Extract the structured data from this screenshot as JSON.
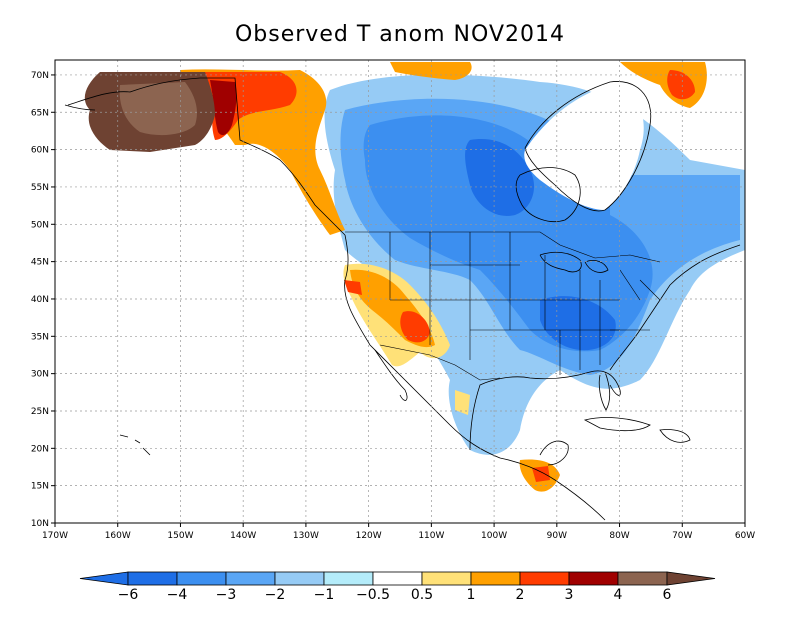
{
  "title": "Observed T anom NOV2014",
  "map": {
    "lon_range": [
      -170,
      -60
    ],
    "lat_range": [
      10,
      72
    ],
    "lat_ticks": [
      "70N",
      "65N",
      "60N",
      "55N",
      "50N",
      "45N",
      "40N",
      "35N",
      "30N",
      "25N",
      "20N",
      "15N",
      "10N"
    ],
    "lat_values": [
      70,
      65,
      60,
      55,
      50,
      45,
      40,
      35,
      30,
      25,
      20,
      15,
      10
    ],
    "lon_ticks": [
      "170W",
      "160W",
      "150W",
      "140W",
      "130W",
      "120W",
      "110W",
      "100W",
      "90W",
      "80W",
      "70W",
      "60W"
    ],
    "lon_values": [
      -170,
      -160,
      -150,
      -140,
      -130,
      -120,
      -110,
      -100,
      -90,
      -80,
      -70,
      -60
    ],
    "grid": true
  },
  "colorbar": {
    "labels": [
      "−6",
      "−4",
      "−3",
      "−2",
      "−1",
      "−0.5",
      "0.5",
      "1",
      "2",
      "3",
      "4",
      "6"
    ],
    "colors": [
      "#1e6ee6",
      "#3c8ff0",
      "#5aa6f5",
      "#96cbf5",
      "#b4ecfa",
      "#ffffff",
      "#ffe178",
      "#ffa000",
      "#ff3c00",
      "#a00000",
      "#8c6450"
    ],
    "end_left": "#1e6ee6",
    "end_right": "#6e4232"
  }
}
